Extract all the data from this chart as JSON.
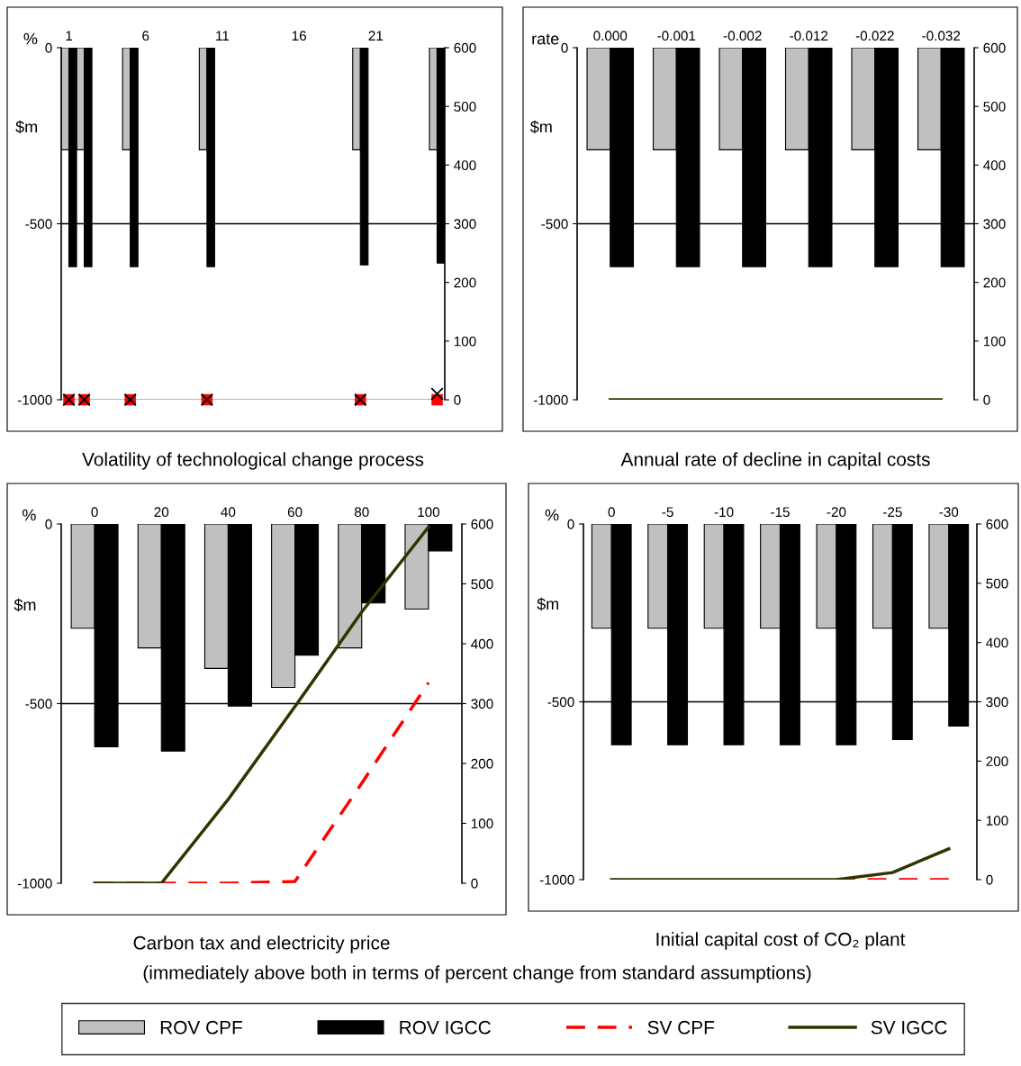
{
  "chart_data": [
    {
      "type": "bar",
      "title": "Volatility of technological change process",
      "xlabel": "%",
      "ylabel": "$m",
      "x": [
        1,
        2,
        5,
        10,
        20,
        25
      ],
      "xlim": [
        0.5,
        25.5
      ],
      "xticks": [
        1,
        6,
        11,
        16,
        21
      ],
      "ylim": [
        -1000,
        0
      ],
      "yticks": [
        0,
        -500,
        -1000
      ],
      "y2lim": [
        0,
        600
      ],
      "y2ticks": [
        0,
        100,
        200,
        300,
        400,
        500,
        600
      ],
      "ref_lines": [
        {
          "axis": "y",
          "value": -500,
          "color": "#000000"
        },
        {
          "axis": "y",
          "value": -1000,
          "color": "#a0a0a0"
        }
      ],
      "series": [
        {
          "color": "#c0c0c0",
          "values": [
            -290,
            -290,
            -290,
            -290,
            -290,
            -290
          ]
        },
        {
          "color": "#000000",
          "values": [
            -622,
            -622,
            -622,
            -622,
            -617,
            -612
          ]
        },
        {
          "type": "scatter",
          "marker": "square",
          "axis": "y2",
          "color": "#ff0000",
          "values": [
            0,
            0,
            0,
            0,
            0,
            0
          ]
        },
        {
          "type": "scatter",
          "marker": "cross",
          "axis": "y2",
          "color": "#000000",
          "values": [
            0,
            0,
            0,
            0,
            0,
            10
          ]
        }
      ]
    },
    {
      "type": "bar",
      "title": "Annual rate of decline in capital costs",
      "xlabel": "rate",
      "ylabel": "$m",
      "categories": [
        "0.000",
        "-0.001",
        "-0.002",
        "-0.012",
        "-0.022",
        "-0.032"
      ],
      "ylim": [
        -1000,
        0
      ],
      "yticks": [
        0,
        -500,
        -1000
      ],
      "y2lim": [
        0,
        600
      ],
      "y2ticks": [
        0,
        100,
        200,
        300,
        400,
        500,
        600
      ],
      "ref_lines": [
        {
          "axis": "y",
          "value": -500,
          "color": "#000000"
        }
      ],
      "series": [
        {
          "color": "#c0c0c0",
          "values": [
            -290,
            -290,
            -290,
            -290,
            -290,
            -290
          ]
        },
        {
          "color": "#000000",
          "values": [
            -622,
            -622,
            -622,
            -622,
            -622,
            -622
          ]
        },
        {
          "type": "line",
          "line_style": "solid",
          "axis": "y2",
          "color": "#333300",
          "values": [
            0,
            0,
            0,
            0,
            0,
            0
          ]
        }
      ]
    },
    {
      "type": "bar",
      "title": "Carbon tax and electricity price",
      "xlabel": "%",
      "ylabel": "$m",
      "categories": [
        "0",
        "20",
        "40",
        "60",
        "80",
        "100"
      ],
      "ylim": [
        -1000,
        0
      ],
      "yticks": [
        0,
        -500,
        -1000
      ],
      "y2lim": [
        0,
        600
      ],
      "y2ticks": [
        0,
        100,
        200,
        300,
        400,
        500,
        600
      ],
      "legend": "bottom",
      "annotations": [
        "(immediately above both in terms of percent change from standard assumptions)"
      ],
      "ref_lines": [
        {
          "axis": "y",
          "value": -500,
          "color": "#000000"
        }
      ],
      "series": [
        {
          "name": "ROV CPF",
          "color": "#c0c0c0",
          "values": [
            -290,
            -345,
            -402,
            -455,
            -345,
            -237
          ]
        },
        {
          "name": "ROV IGCC",
          "color": "#000000",
          "values": [
            -620,
            -632,
            -507,
            -365,
            -220,
            -75
          ]
        },
        {
          "name": "SV CPF",
          "type": "line",
          "line_style": "dashed",
          "axis": "y2",
          "color": "#ff0000",
          "values": [
            0,
            0,
            0,
            3,
            167,
            335
          ]
        },
        {
          "name": "SV IGCC",
          "type": "line",
          "line_style": "solid",
          "axis": "y2",
          "color": "#333300",
          "values": [
            0,
            0,
            140,
            295,
            453,
            595
          ]
        }
      ]
    },
    {
      "type": "bar",
      "title": "Initial capital cost of CO₂ plant",
      "xlabel": "%",
      "ylabel": "$m",
      "categories": [
        "0",
        "-5",
        "-10",
        "-15",
        "-20",
        "-25",
        "-30"
      ],
      "ylim": [
        -1000,
        0
      ],
      "yticks": [
        0,
        -500,
        -1000
      ],
      "y2lim": [
        0,
        600
      ],
      "y2ticks": [
        0,
        100,
        200,
        300,
        400,
        500,
        600
      ],
      "ref_lines": [
        {
          "axis": "y",
          "value": -500,
          "color": "#000000"
        }
      ],
      "series": [
        {
          "color": "#c0c0c0",
          "values": [
            -293,
            -293,
            -293,
            -293,
            -293,
            -293,
            -293
          ]
        },
        {
          "color": "#000000",
          "values": [
            -621,
            -621,
            -621,
            -621,
            -621,
            -606,
            -568
          ]
        },
        {
          "type": "line",
          "line_style": "dashed",
          "axis": "y2",
          "color": "#ff0000",
          "values": [
            null,
            null,
            null,
            null,
            0,
            0,
            0
          ]
        },
        {
          "type": "line",
          "line_style": "solid",
          "axis": "y2",
          "color": "#333300",
          "values": [
            0,
            0,
            0,
            0,
            0,
            12,
            52
          ]
        }
      ]
    }
  ]
}
